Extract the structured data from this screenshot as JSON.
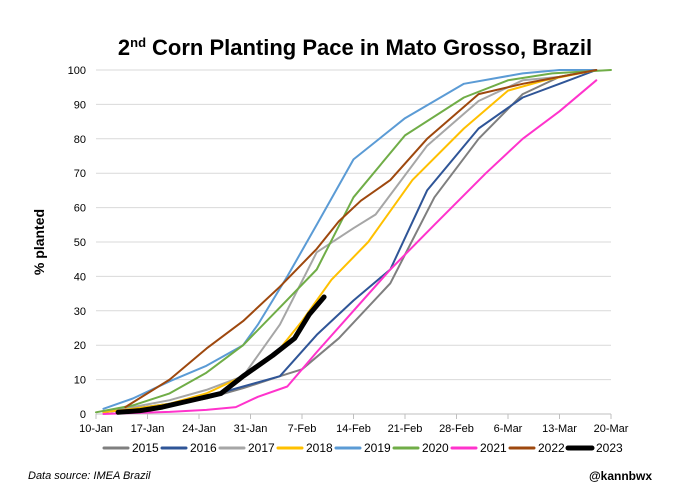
{
  "chart_data": {
    "type": "line",
    "title_main": "Corn Planting Pace in Mato Grosso, Brazil",
    "title_prefix": "2",
    "title_sup": "nd",
    "ylabel": "% planted",
    "xlabel": "",
    "ylim": [
      0,
      100
    ],
    "yticks": [
      "0",
      "10",
      "20",
      "30",
      "40",
      "50",
      "60",
      "70",
      "80",
      "90",
      "100"
    ],
    "xlim": [
      0,
      70
    ],
    "xticks": [
      {
        "day": 0,
        "label": "10-Jan"
      },
      {
        "day": 7,
        "label": "17-Jan"
      },
      {
        "day": 14,
        "label": "24-Jan"
      },
      {
        "day": 21,
        "label": "31-Jan"
      },
      {
        "day": 28,
        "label": "7-Feb"
      },
      {
        "day": 35,
        "label": "14-Feb"
      },
      {
        "day": 42,
        "label": "21-Feb"
      },
      {
        "day": 49,
        "label": "28-Feb"
      },
      {
        "day": 56,
        "label": "6-Mar"
      },
      {
        "day": 63,
        "label": "13-Mar"
      },
      {
        "day": 70,
        "label": "20-Mar"
      }
    ],
    "grid": true,
    "legend_position": "bottom",
    "series": [
      {
        "name": "2015",
        "color": "#7f7f7f",
        "width": 2,
        "points": [
          [
            1,
            0.5
          ],
          [
            5,
            1.5
          ],
          [
            10,
            2.5
          ],
          [
            15,
            4.5
          ],
          [
            20,
            7.5
          ],
          [
            25,
            11
          ],
          [
            28,
            13
          ],
          [
            33,
            22
          ],
          [
            40,
            38
          ],
          [
            46,
            63
          ],
          [
            52,
            80
          ],
          [
            58,
            93
          ],
          [
            63,
            98
          ],
          [
            68,
            100
          ]
        ]
      },
      {
        "name": "2016",
        "color": "#2f5597",
        "width": 2,
        "points": [
          [
            1,
            0.5
          ],
          [
            5,
            1.5
          ],
          [
            10,
            3
          ],
          [
            15,
            5
          ],
          [
            20,
            8
          ],
          [
            25,
            11
          ],
          [
            30,
            23
          ],
          [
            35,
            33
          ],
          [
            40,
            42
          ],
          [
            45,
            65
          ],
          [
            52,
            83
          ],
          [
            58,
            92
          ],
          [
            63,
            96
          ],
          [
            68,
            100
          ]
        ]
      },
      {
        "name": "2017",
        "color": "#a6a6a6",
        "width": 2,
        "points": [
          [
            1,
            0.5
          ],
          [
            5,
            2
          ],
          [
            10,
            4
          ],
          [
            15,
            7
          ],
          [
            20,
            11
          ],
          [
            25,
            26
          ],
          [
            30,
            47
          ],
          [
            35,
            54
          ],
          [
            38,
            58
          ],
          [
            45,
            78
          ],
          [
            52,
            91
          ],
          [
            58,
            97
          ],
          [
            63,
            98
          ],
          [
            68,
            100
          ]
        ]
      },
      {
        "name": "2018",
        "color": "#ffc000",
        "width": 2,
        "points": [
          [
            1,
            0.5
          ],
          [
            5,
            1.5
          ],
          [
            10,
            3
          ],
          [
            15,
            6
          ],
          [
            20,
            11
          ],
          [
            25,
            19
          ],
          [
            28,
            27
          ],
          [
            32,
            39
          ],
          [
            37,
            50
          ],
          [
            43,
            68
          ],
          [
            50,
            83
          ],
          [
            56,
            94
          ],
          [
            61,
            97
          ],
          [
            68,
            100
          ]
        ]
      },
      {
        "name": "2019",
        "color": "#5b9bd5",
        "width": 2,
        "points": [
          [
            1,
            1.5
          ],
          [
            5,
            4.5
          ],
          [
            10,
            9.5
          ],
          [
            15,
            14
          ],
          [
            20,
            20
          ],
          [
            22,
            26
          ],
          [
            26,
            40
          ],
          [
            30,
            55
          ],
          [
            35,
            74
          ],
          [
            42,
            86
          ],
          [
            50,
            96
          ],
          [
            58,
            99
          ],
          [
            63,
            100
          ],
          [
            68,
            100
          ]
        ]
      },
      {
        "name": "2020",
        "color": "#70ad47",
        "width": 2,
        "points": [
          [
            0,
            0.5
          ],
          [
            5,
            2.5
          ],
          [
            10,
            6
          ],
          [
            15,
            12
          ],
          [
            20,
            20
          ],
          [
            25,
            31
          ],
          [
            30,
            42
          ],
          [
            35,
            63
          ],
          [
            42,
            81
          ],
          [
            50,
            92
          ],
          [
            56,
            97
          ],
          [
            62,
            99
          ],
          [
            70,
            100
          ]
        ]
      },
      {
        "name": "2021",
        "color": "#ff33cc",
        "width": 2,
        "points": [
          [
            1,
            0
          ],
          [
            5,
            0.3
          ],
          [
            10,
            0.6
          ],
          [
            15,
            1.2
          ],
          [
            19,
            2
          ],
          [
            22,
            5
          ],
          [
            26,
            8
          ],
          [
            30,
            18
          ],
          [
            35,
            30
          ],
          [
            40,
            42
          ],
          [
            46,
            55
          ],
          [
            53,
            70
          ],
          [
            58,
            80
          ],
          [
            63,
            88
          ],
          [
            68,
            97
          ]
        ]
      },
      {
        "name": "2022",
        "color": "#9e480e",
        "width": 2,
        "points": [
          [
            4,
            2
          ],
          [
            10,
            10
          ],
          [
            15,
            19
          ],
          [
            20,
            27
          ],
          [
            25,
            37
          ],
          [
            30,
            48
          ],
          [
            33,
            56
          ],
          [
            36,
            62
          ],
          [
            40,
            68
          ],
          [
            45,
            80
          ],
          [
            52,
            93
          ],
          [
            58,
            96
          ],
          [
            63,
            98
          ],
          [
            68,
            100
          ]
        ]
      },
      {
        "name": "2023",
        "color": "#000000",
        "width": 5,
        "points": [
          [
            3,
            0.5
          ],
          [
            6,
            1
          ],
          [
            9,
            2
          ],
          [
            12,
            3.5
          ],
          [
            17,
            6
          ],
          [
            20,
            11
          ],
          [
            24,
            17
          ],
          [
            27,
            22
          ],
          [
            29,
            29
          ],
          [
            31,
            34
          ]
        ]
      }
    ]
  },
  "footer": {
    "source": "Data source: IMEA Brazil",
    "handle": "@kannbwx"
  }
}
